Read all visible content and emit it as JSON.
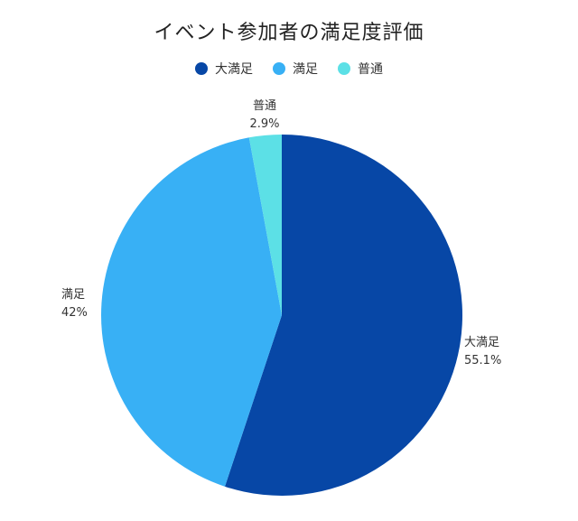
{
  "chart_data": {
    "type": "pie",
    "title": "イベント参加者の満足度評価",
    "legend_position": "top",
    "slices": [
      {
        "label": "大満足",
        "value": 55.1,
        "value_label": "55.1%",
        "color": "#0747a6"
      },
      {
        "label": "満足",
        "value": 42,
        "value_label": "42%",
        "color": "#38b0f5"
      },
      {
        "label": "普通",
        "value": 2.9,
        "value_label": "2.9%",
        "color": "#5ce0e6"
      }
    ]
  }
}
